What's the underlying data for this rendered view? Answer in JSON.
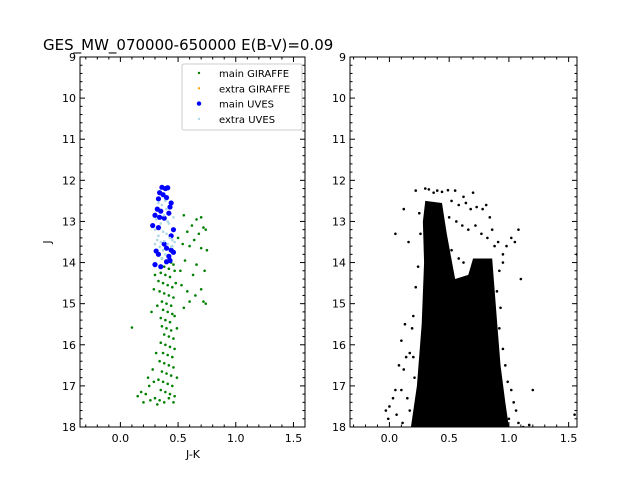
{
  "chart_data": [
    {
      "type": "scatter",
      "title": "GES_MW_070000-650000 E(B-V)=0.09",
      "xlabel": "J-K",
      "ylabel": "J",
      "xlim": [
        -0.35,
        1.6
      ],
      "ylim": [
        18,
        9
      ],
      "y_inverted": true,
      "xticks": [
        "0.0",
        "0.5",
        "1.0",
        "1.5"
      ],
      "yticks": [
        "9",
        "10",
        "11",
        "12",
        "13",
        "14",
        "15",
        "16",
        "17",
        "18"
      ],
      "grid": false,
      "legend_position": "top-right",
      "series": [
        {
          "name": "main GIRAFFE",
          "color": "#008000",
          "marker": "small-dot",
          "points": [
            [
              0.36,
              13.9
            ],
            [
              0.4,
              13.95
            ],
            [
              0.44,
              14.0
            ],
            [
              0.38,
              14.1
            ],
            [
              0.42,
              14.15
            ],
            [
              0.46,
              14.05
            ],
            [
              0.35,
              14.25
            ],
            [
              0.39,
              14.3
            ],
            [
              0.43,
              14.35
            ],
            [
              0.47,
              14.2
            ],
            [
              0.33,
              14.45
            ],
            [
              0.37,
              14.5
            ],
            [
              0.41,
              14.55
            ],
            [
              0.45,
              14.6
            ],
            [
              0.34,
              14.7
            ],
            [
              0.38,
              14.75
            ],
            [
              0.42,
              14.8
            ],
            [
              0.46,
              14.85
            ],
            [
              0.36,
              14.95
            ],
            [
              0.4,
              15.0
            ],
            [
              0.44,
              15.05
            ],
            [
              0.37,
              15.15
            ],
            [
              0.41,
              15.2
            ],
            [
              0.45,
              15.25
            ],
            [
              0.35,
              15.35
            ],
            [
              0.39,
              15.4
            ],
            [
              0.43,
              15.45
            ],
            [
              0.47,
              15.3
            ],
            [
              0.36,
              15.55
            ],
            [
              0.4,
              15.6
            ],
            [
              0.44,
              15.65
            ],
            [
              0.38,
              15.75
            ],
            [
              0.42,
              15.8
            ],
            [
              0.46,
              15.85
            ],
            [
              0.35,
              15.95
            ],
            [
              0.39,
              16.0
            ],
            [
              0.43,
              16.05
            ],
            [
              0.47,
              16.1
            ],
            [
              0.37,
              16.2
            ],
            [
              0.41,
              16.25
            ],
            [
              0.45,
              16.3
            ],
            [
              0.34,
              16.4
            ],
            [
              0.38,
              16.45
            ],
            [
              0.42,
              16.5
            ],
            [
              0.46,
              16.55
            ],
            [
              0.36,
              16.65
            ],
            [
              0.4,
              16.7
            ],
            [
              0.44,
              16.75
            ],
            [
              0.33,
              16.85
            ],
            [
              0.37,
              16.9
            ],
            [
              0.41,
              16.95
            ],
            [
              0.45,
              17.0
            ],
            [
              0.35,
              17.1
            ],
            [
              0.39,
              17.15
            ],
            [
              0.43,
              17.2
            ],
            [
              0.47,
              17.25
            ],
            [
              0.3,
              17.3
            ],
            [
              0.34,
              17.35
            ],
            [
              0.38,
              17.4
            ],
            [
              0.42,
              17.3
            ],
            [
              0.46,
              17.4
            ],
            [
              0.32,
              15.05
            ],
            [
              0.3,
              14.3
            ],
            [
              0.48,
              14.5
            ],
            [
              0.49,
              15.6
            ],
            [
              0.49,
              16.8
            ],
            [
              0.31,
              16.2
            ],
            [
              0.29,
              16.9
            ],
            [
              0.32,
              17.45
            ],
            [
              0.25,
              17.0
            ],
            [
              0.22,
              17.2
            ],
            [
              0.18,
              17.15
            ],
            [
              0.15,
              17.25
            ],
            [
              0.2,
              17.4
            ],
            [
              0.26,
              17.35
            ],
            [
              0.24,
              16.8
            ],
            [
              0.28,
              16.6
            ],
            [
              0.1,
              15.58
            ],
            [
              0.27,
              15.2
            ],
            [
              0.29,
              14.65
            ],
            [
              0.55,
              12.85
            ],
            [
              0.62,
              13.1
            ],
            [
              0.66,
              12.95
            ],
            [
              0.7,
              12.9
            ],
            [
              0.72,
              13.15
            ],
            [
              0.68,
              13.3
            ],
            [
              0.58,
              13.25
            ],
            [
              0.64,
              13.45
            ],
            [
              0.74,
              13.2
            ],
            [
              0.6,
              13.6
            ],
            [
              0.7,
              13.65
            ],
            [
              0.75,
              13.7
            ],
            [
              0.56,
              13.95
            ],
            [
              0.66,
              14.05
            ],
            [
              0.63,
              14.3
            ],
            [
              0.73,
              14.2
            ],
            [
              0.53,
              14.55
            ],
            [
              0.58,
              14.7
            ],
            [
              0.65,
              14.8
            ],
            [
              0.7,
              14.65
            ],
            [
              0.72,
              14.95
            ],
            [
              0.74,
              15.0
            ],
            [
              0.54,
              13.55
            ],
            [
              0.52,
              14.2
            ],
            [
              0.55,
              15.1
            ],
            [
              0.6,
              14.95
            ],
            [
              0.5,
              13.4
            ]
          ]
        },
        {
          "name": "extra GIRAFFE",
          "color": "#ffa500",
          "marker": "small-dot",
          "points": []
        },
        {
          "name": "main UVES",
          "color": "#0000ff",
          "marker": "dot",
          "points": [
            [
              0.36,
              12.17
            ],
            [
              0.39,
              12.2
            ],
            [
              0.41,
              12.18
            ],
            [
              0.34,
              12.3
            ],
            [
              0.37,
              12.35
            ],
            [
              0.33,
              12.45
            ],
            [
              0.4,
              12.42
            ],
            [
              0.44,
              12.55
            ],
            [
              0.43,
              12.65
            ],
            [
              0.32,
              12.7
            ],
            [
              0.35,
              12.75
            ],
            [
              0.42,
              12.8
            ],
            [
              0.3,
              12.85
            ],
            [
              0.34,
              12.9
            ],
            [
              0.38,
              12.92
            ],
            [
              0.28,
              13.1
            ],
            [
              0.33,
              13.15
            ],
            [
              0.46,
              13.2
            ],
            [
              0.44,
              13.35
            ],
            [
              0.38,
              13.55
            ],
            [
              0.31,
              13.72
            ],
            [
              0.33,
              13.8
            ],
            [
              0.4,
              13.65
            ],
            [
              0.44,
              13.7
            ],
            [
              0.46,
              13.75
            ],
            [
              0.43,
              13.95
            ],
            [
              0.4,
              13.98
            ],
            [
              0.3,
              14.05
            ],
            [
              0.35,
              14.1
            ],
            [
              0.42,
              13.85
            ]
          ]
        },
        {
          "name": "extra UVES",
          "color": "#add8e6",
          "marker": "small-dot",
          "points": [
            [
              0.33,
              12.55
            ],
            [
              0.36,
              12.6
            ],
            [
              0.4,
              12.7
            ],
            [
              0.38,
              12.85
            ],
            [
              0.41,
              13.0
            ],
            [
              0.35,
              13.05
            ],
            [
              0.3,
              13.2
            ],
            [
              0.37,
              13.25
            ],
            [
              0.4,
              13.3
            ],
            [
              0.43,
              13.4
            ],
            [
              0.32,
              13.45
            ],
            [
              0.35,
              13.5
            ],
            [
              0.38,
              13.48
            ],
            [
              0.41,
              13.55
            ],
            [
              0.45,
              13.6
            ],
            [
              0.34,
              13.62
            ],
            [
              0.37,
              13.7
            ],
            [
              0.3,
              13.55
            ],
            [
              0.47,
              13.5
            ],
            [
              0.39,
              13.8
            ],
            [
              0.36,
              13.9
            ],
            [
              0.45,
              13.45
            ],
            [
              0.42,
              13.05
            ],
            [
              0.33,
              13.35
            ],
            [
              0.31,
              12.95
            ],
            [
              0.46,
              12.9
            ],
            [
              0.39,
              12.5
            ],
            [
              0.44,
              13.62
            ]
          ]
        }
      ]
    },
    {
      "type": "scatter",
      "xlim": [
        -0.33,
        1.57
      ],
      "ylim": [
        18,
        9
      ],
      "y_inverted": true,
      "xticks": [
        "0.0",
        "0.5",
        "1.0",
        "1.5"
      ],
      "yticks": [
        "9",
        "10",
        "11",
        "12",
        "13",
        "14",
        "15",
        "16",
        "17",
        "18"
      ],
      "grid": false,
      "series": [
        {
          "color": "#000000",
          "marker": "small-dot",
          "dense_region": [
            [
              0.3,
              12.5
            ],
            [
              0.44,
              12.55
            ],
            [
              0.48,
              13.3
            ],
            [
              0.55,
              14.4
            ],
            [
              0.66,
              14.3
            ],
            [
              0.7,
              13.9
            ],
            [
              0.86,
              13.9
            ],
            [
              0.9,
              15.4
            ],
            [
              0.93,
              16.5
            ],
            [
              0.97,
              17.4
            ],
            [
              1.0,
              18
            ],
            [
              0.18,
              18
            ],
            [
              0.23,
              17.0
            ],
            [
              0.27,
              15.5
            ],
            [
              0.29,
              14.0
            ],
            [
              0.28,
              13.0
            ]
          ],
          "points": [
            [
              0.22,
              12.25
            ],
            [
              0.3,
              12.2
            ],
            [
              0.33,
              12.22
            ],
            [
              0.37,
              12.3
            ],
            [
              0.4,
              12.25
            ],
            [
              0.44,
              12.28
            ],
            [
              0.49,
              12.24
            ],
            [
              0.55,
              12.25
            ],
            [
              0.62,
              12.4
            ],
            [
              0.7,
              12.3
            ],
            [
              0.52,
              12.5
            ],
            [
              0.58,
              12.6
            ],
            [
              0.64,
              12.55
            ],
            [
              0.68,
              12.7
            ],
            [
              0.73,
              12.65
            ],
            [
              0.78,
              12.7
            ],
            [
              0.81,
              12.6
            ],
            [
              0.84,
              12.9
            ],
            [
              0.5,
              12.9
            ],
            [
              0.56,
              13.0
            ],
            [
              0.61,
              13.1
            ],
            [
              0.66,
              13.2
            ],
            [
              0.72,
              13.1
            ],
            [
              0.77,
              13.3
            ],
            [
              0.82,
              13.4
            ],
            [
              0.86,
              13.2
            ],
            [
              0.88,
              13.6
            ],
            [
              0.91,
              13.5
            ],
            [
              0.95,
              13.8
            ],
            [
              0.98,
              13.6
            ],
            [
              1.02,
              13.4
            ],
            [
              1.05,
              13.5
            ],
            [
              1.08,
              13.2
            ],
            [
              1.1,
              14.4
            ],
            [
              0.92,
              14.2
            ],
            [
              0.95,
              14.0
            ],
            [
              0.52,
              13.7
            ],
            [
              0.58,
              13.9
            ],
            [
              0.62,
              14.0
            ],
            [
              0.12,
              12.7
            ],
            [
              0.05,
              13.3
            ],
            [
              0.16,
              13.5
            ],
            [
              0.25,
              12.8
            ],
            [
              0.26,
              13.3
            ],
            [
              0.24,
              14.1
            ],
            [
              0.22,
              14.6
            ],
            [
              0.2,
              15.3
            ],
            [
              0.13,
              15.5
            ],
            [
              0.19,
              15.6
            ],
            [
              0.1,
              15.9
            ],
            [
              0.17,
              16.2
            ],
            [
              0.14,
              16.3
            ],
            [
              0.2,
              16.3
            ],
            [
              0.08,
              16.5
            ],
            [
              0.12,
              16.6
            ],
            [
              0.21,
              16.8
            ],
            [
              0.05,
              17.1
            ],
            [
              0.1,
              17.1
            ],
            [
              0.15,
              17.3
            ],
            [
              0.03,
              17.3
            ],
            [
              0.0,
              17.5
            ],
            [
              -0.03,
              17.6
            ],
            [
              -0.01,
              17.8
            ],
            [
              0.06,
              17.7
            ],
            [
              0.11,
              17.9
            ],
            [
              0.17,
              17.6
            ],
            [
              0.92,
              15.6
            ],
            [
              0.95,
              16.1
            ],
            [
              0.97,
              16.5
            ],
            [
              0.99,
              16.9
            ],
            [
              1.02,
              17.1
            ],
            [
              1.04,
              17.4
            ],
            [
              1.06,
              17.6
            ],
            [
              1.0,
              17.8
            ],
            [
              1.08,
              17.9
            ],
            [
              1.12,
              18.0
            ],
            [
              1.2,
              17.1
            ],
            [
              1.55,
              17.7
            ],
            [
              1.57,
              13.8
            ],
            [
              1.17,
              17.95
            ],
            [
              0.93,
              15.1
            ],
            [
              0.9,
              14.7
            ]
          ]
        }
      ]
    }
  ]
}
